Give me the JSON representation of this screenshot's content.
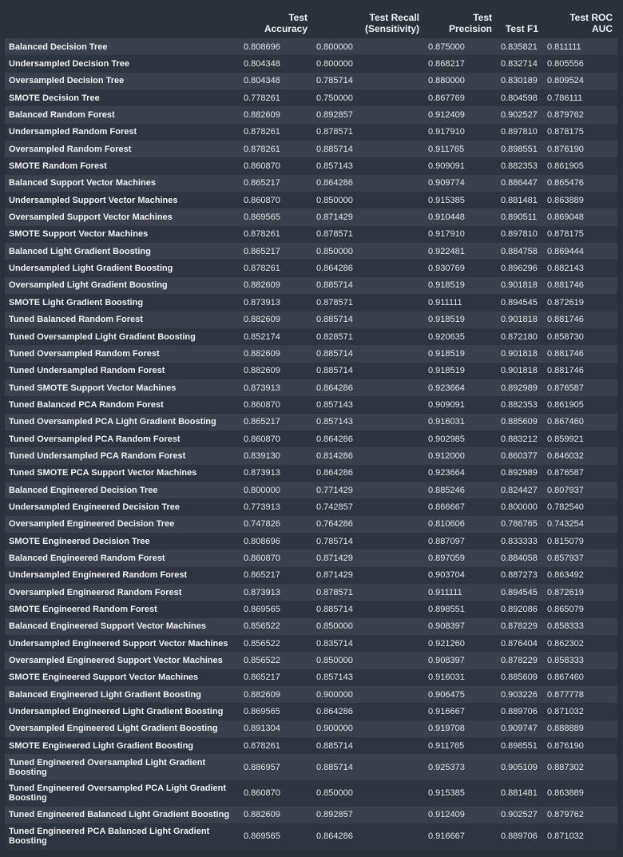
{
  "headers": [
    "",
    "Test\nAccuracy",
    "Test Recall\n(Sensitivity)",
    "Test\nPrecision",
    "Test F1",
    "Test ROC\nAUC"
  ],
  "rows": [
    [
      "Balanced Decision Tree",
      "0.808696",
      "0.800000",
      "0.875000",
      "0.835821",
      "0.811111"
    ],
    [
      "Undersampled Decision Tree",
      "0.804348",
      "0.800000",
      "0.868217",
      "0.832714",
      "0.805556"
    ],
    [
      "Oversampled Decision Tree",
      "0.804348",
      "0.785714",
      "0.880000",
      "0.830189",
      "0.809524"
    ],
    [
      "SMOTE Decision Tree",
      "0.778261",
      "0.750000",
      "0.867769",
      "0.804598",
      "0.786111"
    ],
    [
      "Balanced Random Forest",
      "0.882609",
      "0.892857",
      "0.912409",
      "0.902527",
      "0.879762"
    ],
    [
      "Undersampled Random Forest",
      "0.878261",
      "0.878571",
      "0.917910",
      "0.897810",
      "0.878175"
    ],
    [
      "Oversampled Random Forest",
      "0.878261",
      "0.885714",
      "0.911765",
      "0.898551",
      "0.876190"
    ],
    [
      "SMOTE Random Forest",
      "0.860870",
      "0.857143",
      "0.909091",
      "0.882353",
      "0.861905"
    ],
    [
      "Balanced Support Vector Machines",
      "0.865217",
      "0.864286",
      "0.909774",
      "0.886447",
      "0.865476"
    ],
    [
      "Undersampled Support Vector Machines",
      "0.860870",
      "0.850000",
      "0.915385",
      "0.881481",
      "0.863889"
    ],
    [
      "Oversampled Support Vector Machines",
      "0.869565",
      "0.871429",
      "0.910448",
      "0.890511",
      "0.869048"
    ],
    [
      "SMOTE Support Vector Machines",
      "0.878261",
      "0.878571",
      "0.917910",
      "0.897810",
      "0.878175"
    ],
    [
      "Balanced Light Gradient Boosting",
      "0.865217",
      "0.850000",
      "0.922481",
      "0.884758",
      "0.869444"
    ],
    [
      "Undersampled Light Gradient Boosting",
      "0.878261",
      "0.864286",
      "0.930769",
      "0.896296",
      "0.882143"
    ],
    [
      "Oversampled Light Gradient Boosting",
      "0.882609",
      "0.885714",
      "0.918519",
      "0.901818",
      "0.881746"
    ],
    [
      "SMOTE Light Gradient Boosting",
      "0.873913",
      "0.878571",
      "0.911111",
      "0.894545",
      "0.872619"
    ],
    [
      "Tuned Balanced Random Forest",
      "0.882609",
      "0.885714",
      "0.918519",
      "0.901818",
      "0.881746"
    ],
    [
      "Tuned Oversampled Light Gradient Boosting",
      "0.852174",
      "0.828571",
      "0.920635",
      "0.872180",
      "0.858730"
    ],
    [
      "Tuned Oversampled Random Forest",
      "0.882609",
      "0.885714",
      "0.918519",
      "0.901818",
      "0.881746"
    ],
    [
      "Tuned Undersampled Random Forest",
      "0.882609",
      "0.885714",
      "0.918519",
      "0.901818",
      "0.881746"
    ],
    [
      "Tuned SMOTE Support Vector Machines",
      "0.873913",
      "0.864286",
      "0.923664",
      "0.892989",
      "0.876587"
    ],
    [
      "Tuned Balanced PCA Random Forest",
      "0.860870",
      "0.857143",
      "0.909091",
      "0.882353",
      "0.861905"
    ],
    [
      "Tuned Oversampled PCA Light Gradient Boosting",
      "0.865217",
      "0.857143",
      "0.916031",
      "0.885609",
      "0.867460"
    ],
    [
      "Tuned Oversampled PCA Random Forest",
      "0.860870",
      "0.864286",
      "0.902985",
      "0.883212",
      "0.859921"
    ],
    [
      "Tuned Undersampled PCA Random Forest",
      "0.839130",
      "0.814286",
      "0.912000",
      "0.860377",
      "0.846032"
    ],
    [
      "Tuned SMOTE PCA Support Vector Machines",
      "0.873913",
      "0.864286",
      "0.923664",
      "0.892989",
      "0.876587"
    ],
    [
      "Balanced Engineered Decision Tree",
      "0.800000",
      "0.771429",
      "0.885246",
      "0.824427",
      "0.807937"
    ],
    [
      "Undersampled Engineered Decision Tree",
      "0.773913",
      "0.742857",
      "0.866667",
      "0.800000",
      "0.782540"
    ],
    [
      "Oversampled Engineered Decision Tree",
      "0.747826",
      "0.764286",
      "0.810606",
      "0.786765",
      "0.743254"
    ],
    [
      "SMOTE Engineered Decision Tree",
      "0.808696",
      "0.785714",
      "0.887097",
      "0.833333",
      "0.815079"
    ],
    [
      "Balanced Engineered Random Forest",
      "0.860870",
      "0.871429",
      "0.897059",
      "0.884058",
      "0.857937"
    ],
    [
      "Undersampled Engineered Random Forest",
      "0.865217",
      "0.871429",
      "0.903704",
      "0.887273",
      "0.863492"
    ],
    [
      "Oversampled Engineered Random Forest",
      "0.873913",
      "0.878571",
      "0.911111",
      "0.894545",
      "0.872619"
    ],
    [
      "SMOTE Engineered Random Forest",
      "0.869565",
      "0.885714",
      "0.898551",
      "0.892086",
      "0.865079"
    ],
    [
      "Balanced Engineered Support Vector Machines",
      "0.856522",
      "0.850000",
      "0.908397",
      "0.878229",
      "0.858333"
    ],
    [
      "Undersampled Engineered Support Vector Machines",
      "0.856522",
      "0.835714",
      "0.921260",
      "0.876404",
      "0.862302"
    ],
    [
      "Oversampled Engineered Support Vector Machines",
      "0.856522",
      "0.850000",
      "0.908397",
      "0.878229",
      "0.858333"
    ],
    [
      "SMOTE Engineered Support Vector Machines",
      "0.865217",
      "0.857143",
      "0.916031",
      "0.885609",
      "0.867460"
    ],
    [
      "Balanced Engineered Light Gradient Boosting",
      "0.882609",
      "0.900000",
      "0.906475",
      "0.903226",
      "0.877778"
    ],
    [
      "Undersampled Engineered Light Gradient Boosting",
      "0.869565",
      "0.864286",
      "0.916667",
      "0.889706",
      "0.871032"
    ],
    [
      "Oversampled Engineered Light Gradient Boosting",
      "0.891304",
      "0.900000",
      "0.919708",
      "0.909747",
      "0.888889"
    ],
    [
      "SMOTE Engineered Light Gradient Boosting",
      "0.878261",
      "0.885714",
      "0.911765",
      "0.898551",
      "0.876190"
    ],
    [
      "Tuned Engineered Oversampled Light Gradient Boosting",
      "0.886957",
      "0.885714",
      "0.925373",
      "0.905109",
      "0.887302"
    ],
    [
      "Tuned Engineered Oversampled PCA Light Gradient Boosting",
      "0.860870",
      "0.850000",
      "0.915385",
      "0.881481",
      "0.863889"
    ],
    [
      "Tuned Engineered Balanced Light Gradient Boosting",
      "0.882609",
      "0.892857",
      "0.912409",
      "0.902527",
      "0.879762"
    ],
    [
      "Tuned Engineered PCA Balanced Light Gradient Boosting",
      "0.869565",
      "0.864286",
      "0.916667",
      "0.889706",
      "0.871032"
    ]
  ]
}
